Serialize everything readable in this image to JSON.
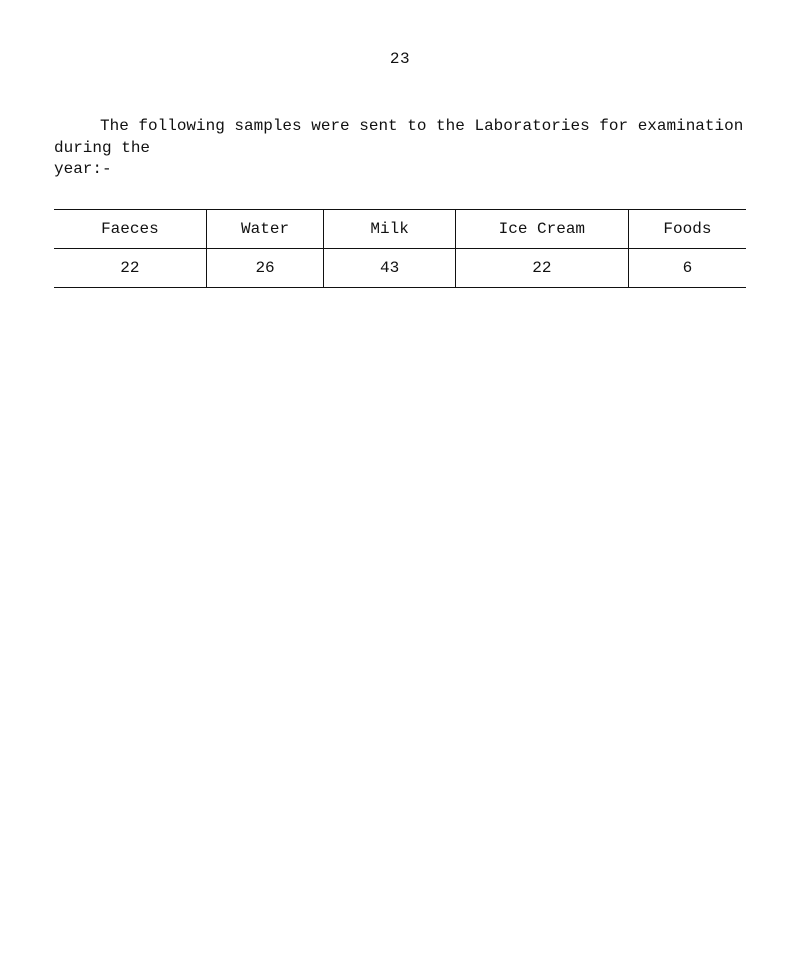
{
  "page_number": "23",
  "intro_line1": "The following samples were sent to the Laboratories for examination during the",
  "intro_line2": "year:-",
  "table": {
    "columns": [
      "Faeces",
      "Water",
      "Milk",
      "Ice Cream",
      "Foods"
    ],
    "rows": [
      [
        "22",
        "26",
        "43",
        "22",
        "6"
      ]
    ],
    "border_color": "#111111",
    "font_family": "Courier New",
    "header_fontsize": 16,
    "cell_fontsize": 16,
    "background_color": "#ffffff",
    "text_color": "#111111"
  }
}
